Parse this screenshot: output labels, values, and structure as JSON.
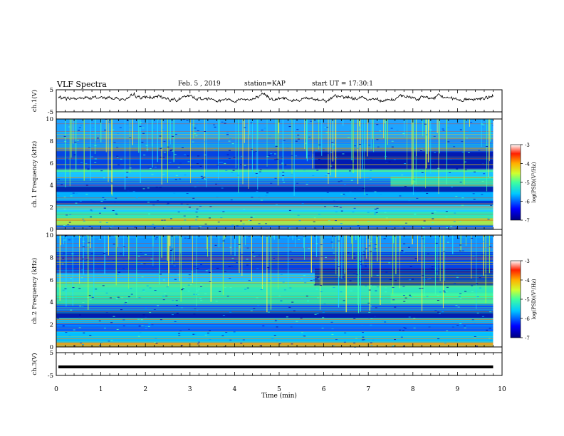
{
  "header": {
    "title": "VLF Spectra",
    "date": "Feb. 5 , 2019",
    "station": "station=KAP",
    "start": "start UT = 17:30:1"
  },
  "chart_data": [
    {
      "type": "line",
      "name": "ch1-waveform",
      "ylabel": "ch.1(V)",
      "ylim": [
        -5,
        5
      ],
      "ytick_labels": [
        "5",
        "-5"
      ],
      "xlim": [
        0,
        10
      ],
      "x_end": 9.8,
      "baseline": 1.2,
      "amplitude": 2.2
    },
    {
      "type": "heatmap",
      "name": "ch1-spectrogram",
      "ylabel": "ch.1 Frequency (kHz)",
      "ylim": [
        0,
        10
      ],
      "ytick_labels": [
        "0",
        "2",
        "4",
        "6",
        "8",
        "10"
      ],
      "xlim": [
        0,
        10
      ],
      "x_end": 9.8,
      "colorbar": {
        "label": "log(PSD)(V²/Hz)",
        "range": [
          -7,
          -3
        ],
        "tick_labels": [
          "-3",
          "-4",
          "-5",
          "-6",
          "-7"
        ]
      }
    },
    {
      "type": "heatmap",
      "name": "ch2-spectrogram",
      "ylabel": "ch.2 Frequency (kHz)",
      "ylim": [
        0,
        10
      ],
      "ytick_labels": [
        "0",
        "2",
        "4",
        "6",
        "8",
        "10"
      ],
      "xlim": [
        0,
        10
      ],
      "x_end": 9.8,
      "colorbar": {
        "label": "log(PSD)(V²/Hz)",
        "range": [
          -7,
          -3
        ],
        "tick_labels": [
          "-3",
          "-4",
          "-5",
          "-6",
          "-7"
        ]
      }
    },
    {
      "type": "line",
      "name": "ch3-waveform",
      "ylabel": "ch.3(V)",
      "ylim": [
        -5,
        5
      ],
      "ytick_labels": [
        "5",
        "-5"
      ],
      "xlim": [
        0,
        10
      ],
      "x_end": 9.8,
      "constant_value": 0
    }
  ],
  "x_axis": {
    "label": "Time (min)",
    "tick_labels": [
      "0",
      "1",
      "2",
      "3",
      "4",
      "5",
      "6",
      "7",
      "8",
      "9",
      "10"
    ]
  }
}
